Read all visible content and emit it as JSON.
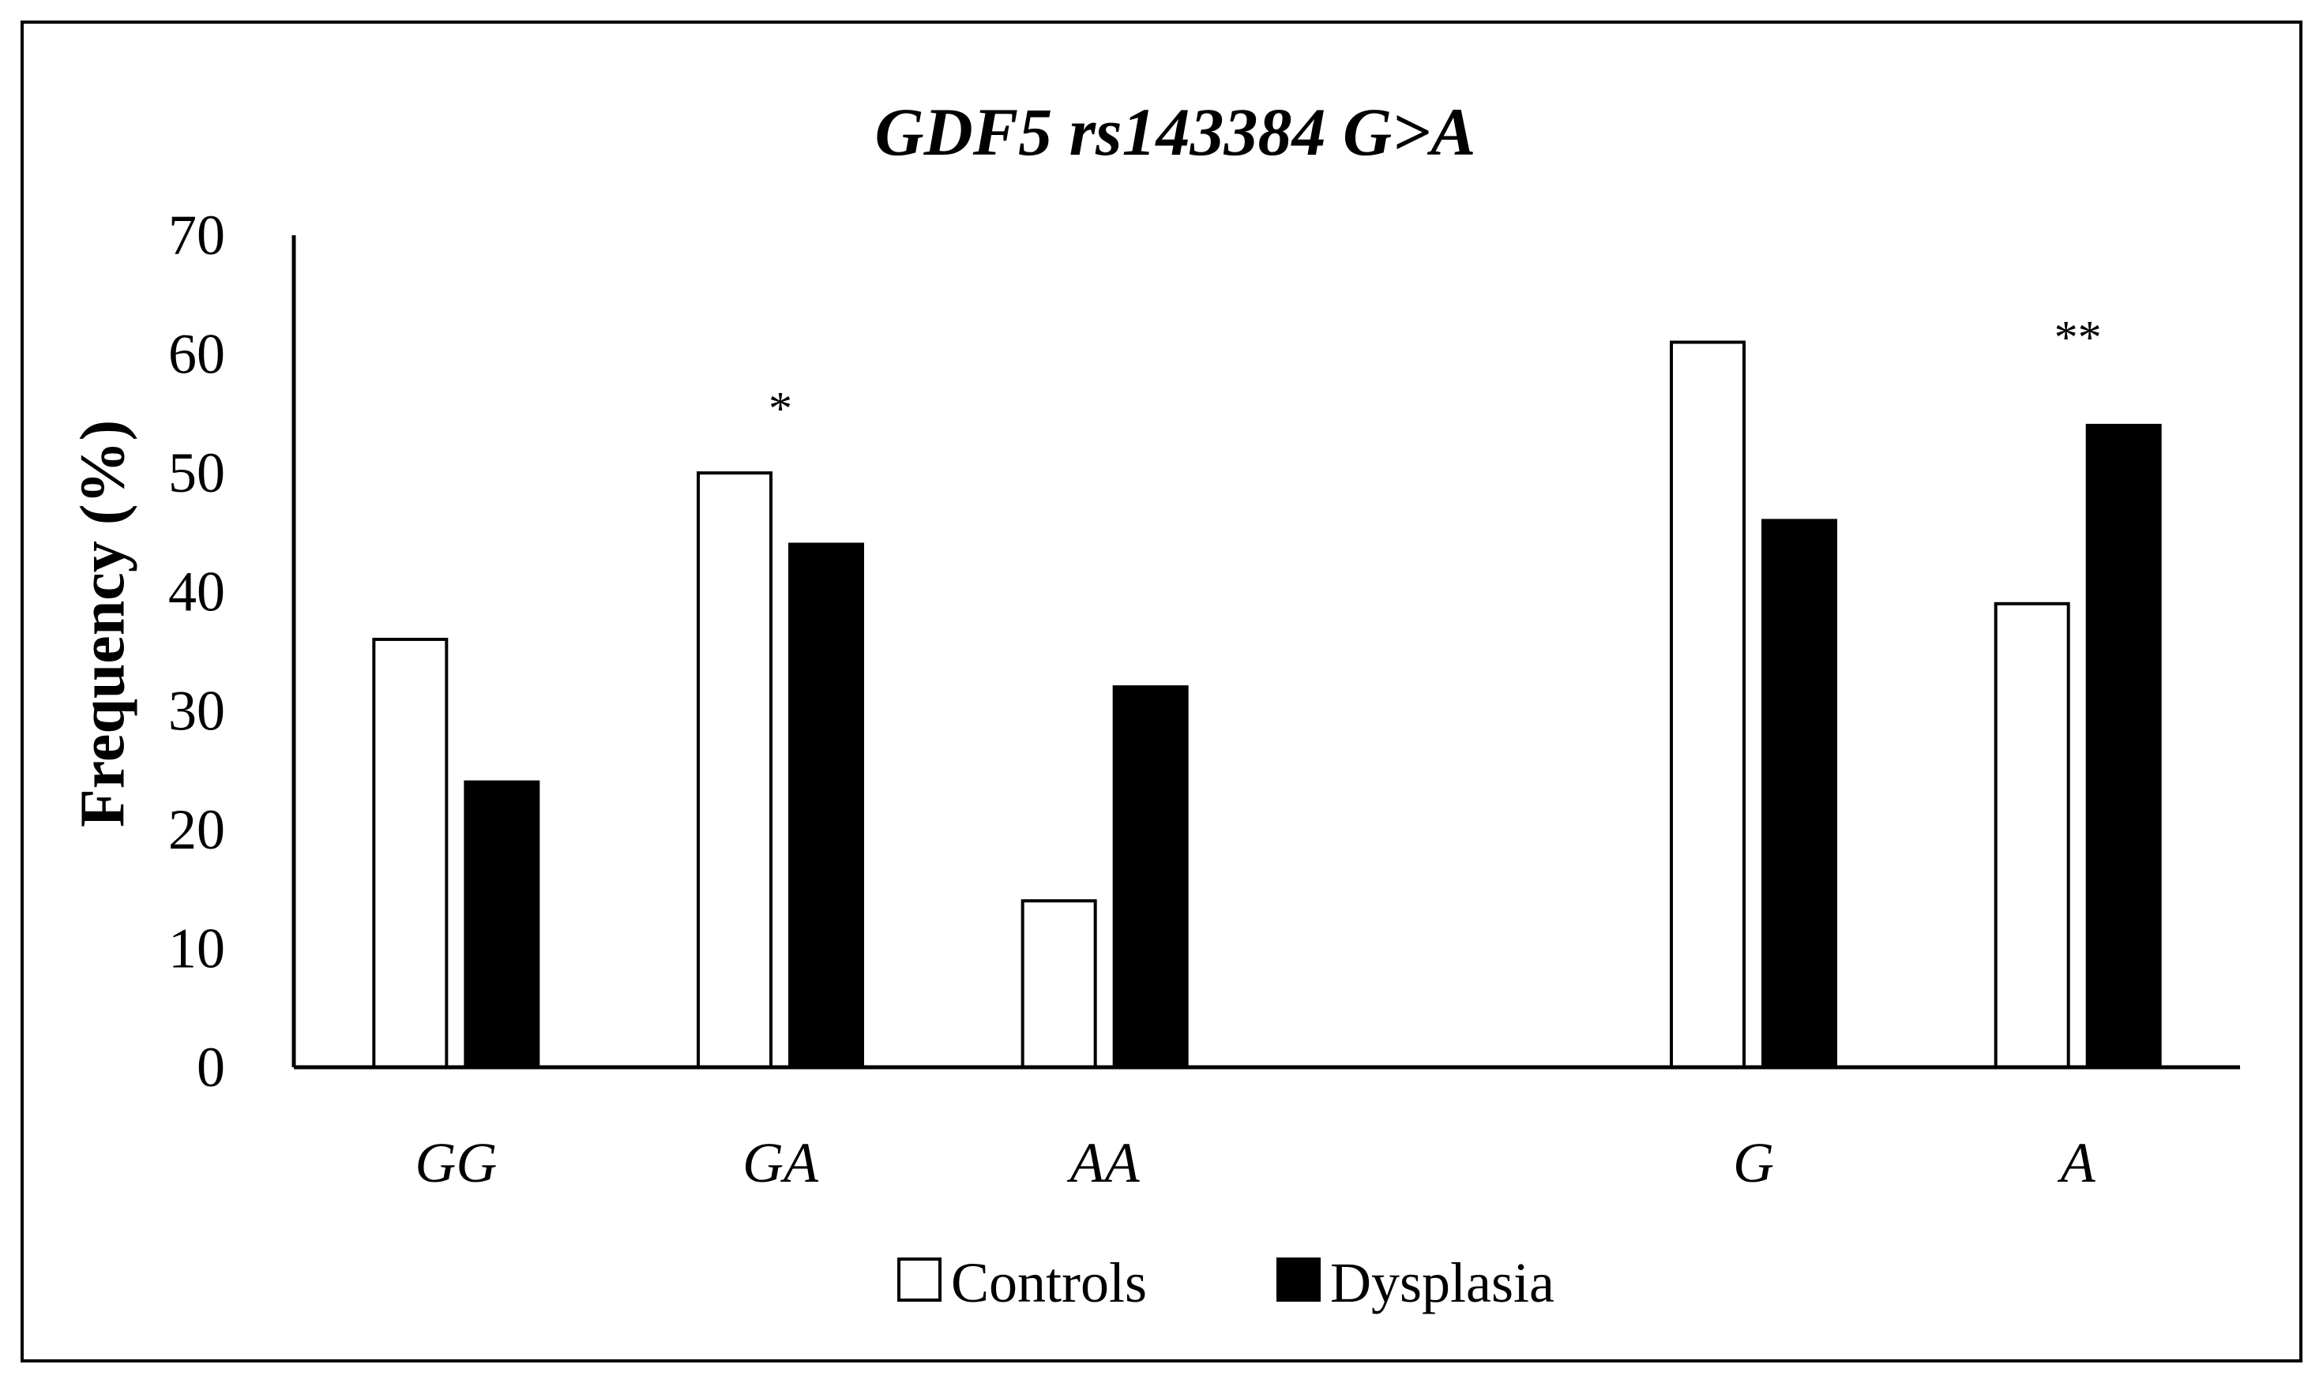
{
  "chart_data": {
    "type": "bar",
    "title": "GDF5 rs143384 G>A",
    "xlabel": "",
    "ylabel": "Frequency (%)",
    "ylim": [
      0,
      70
    ],
    "yticks": [
      0,
      10,
      20,
      30,
      40,
      50,
      60,
      70
    ],
    "grid": false,
    "legend_position": "bottom",
    "categories": [
      "GG",
      "GA",
      "AA",
      "",
      "G",
      "A"
    ],
    "series": [
      {
        "name": "Controls",
        "color": "#ffffff",
        "values": [
          36,
          50,
          14,
          null,
          61,
          39
        ]
      },
      {
        "name": "Dysplasia",
        "color": "#000000",
        "values": [
          24,
          44,
          32,
          null,
          46,
          54
        ]
      }
    ],
    "annotations": [
      {
        "category": "GA",
        "text": "*",
        "y": 57
      },
      {
        "category": "A",
        "text": "**",
        "y": 63
      }
    ]
  }
}
